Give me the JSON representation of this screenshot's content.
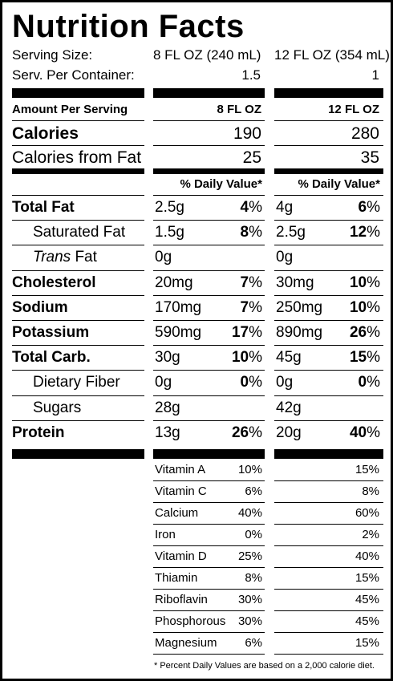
{
  "title": "Nutrition Facts",
  "serving": {
    "size_label": "Serving Size:",
    "size_col1": "8 FL OZ (240 mL)",
    "size_col2": "12 FL OZ (354 mL)",
    "per_container_label": "Serv. Per Container:",
    "per_container_col1": "1.5",
    "per_container_col2": "1"
  },
  "header": {
    "amount_label": "Amount Per Serving",
    "col1": "8 FL OZ",
    "col2": "12 FL OZ"
  },
  "calories": {
    "label": "Calories",
    "col1": "190",
    "col2": "280",
    "fat_label": "Calories from Fat",
    "fat_col1": "25",
    "fat_col2": "35"
  },
  "dv_header": "% Daily Value*",
  "nutrients": [
    {
      "label": "Total Fat",
      "c1_amt": "2.5g",
      "c1_pct": "4",
      "c2_amt": "4g",
      "c2_pct": "6"
    },
    {
      "label": "Saturated Fat",
      "c1_amt": "1.5g",
      "c1_pct": "8",
      "c2_amt": "2.5g",
      "c2_pct": "12"
    },
    {
      "label_italic": "Trans",
      "label_rest": " Fat",
      "c1_amt": "0g",
      "c2_amt": "0g"
    },
    {
      "label": "Cholesterol",
      "c1_amt": "20mg",
      "c1_pct": "7",
      "c2_amt": "30mg",
      "c2_pct": "10"
    },
    {
      "label": "Sodium",
      "c1_amt": "170mg",
      "c1_pct": "7",
      "c2_amt": "250mg",
      "c2_pct": "10"
    },
    {
      "label": "Potassium",
      "c1_amt": "590mg",
      "c1_pct": "17",
      "c2_amt": "890mg",
      "c2_pct": "26"
    },
    {
      "label": "Total Carb.",
      "c1_amt": "30g",
      "c1_pct": "10",
      "c2_amt": "45g",
      "c2_pct": "15"
    },
    {
      "label": "Dietary Fiber",
      "c1_amt": "0g",
      "c1_pct": "0",
      "c2_amt": "0g",
      "c2_pct": "0"
    },
    {
      "label": "Sugars",
      "c1_amt": "28g",
      "c2_amt": "42g"
    },
    {
      "label": "Protein",
      "c1_amt": "13g",
      "c1_pct": "26",
      "c2_amt": "20g",
      "c2_pct": "40"
    }
  ],
  "percent_sign": "%",
  "vitamins": [
    {
      "label": "Vitamin A",
      "c1": "10%",
      "c2": "15%"
    },
    {
      "label": "Vitamin C",
      "c1": "6%",
      "c2": "8%"
    },
    {
      "label": "Calcium",
      "c1": "40%",
      "c2": "60%"
    },
    {
      "label": "Iron",
      "c1": "0%",
      "c2": "2%"
    },
    {
      "label": "Vitamin D",
      "c1": "25%",
      "c2": "40%"
    },
    {
      "label": "Thiamin",
      "c1": "8%",
      "c2": "15%"
    },
    {
      "label": "Riboflavin",
      "c1": "30%",
      "c2": "45%"
    },
    {
      "label": "Phosphorous",
      "c1": "30%",
      "c2": "45%"
    },
    {
      "label": "Magnesium",
      "c1": "6%",
      "c2": "15%"
    }
  ],
  "footnote": "* Percent Daily Values are based on a 2,000 calorie diet."
}
